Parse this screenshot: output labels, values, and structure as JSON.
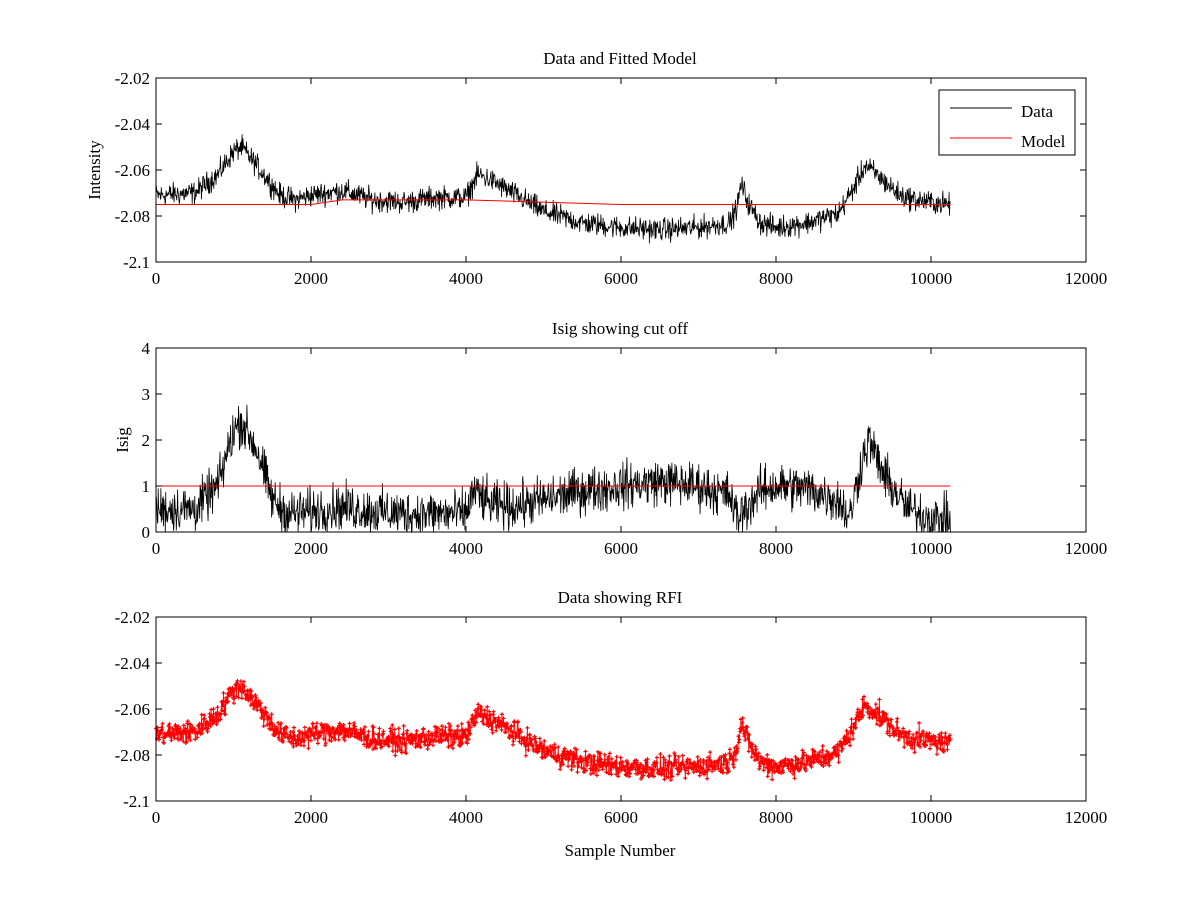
{
  "figure": {
    "background": "#ffffff"
  },
  "colors": {
    "data": "#000000",
    "model": "#ff0000",
    "rfi": "#ff0000",
    "axis": "#000000"
  },
  "chart_data": [
    {
      "type": "line",
      "title": "Data and Fitted Model",
      "xlabel": "",
      "ylabel": "Intensity",
      "xlim": [
        0,
        12000
      ],
      "ylim": [
        -2.1,
        -2.02
      ],
      "xticks": [
        0,
        2000,
        4000,
        6000,
        8000,
        10000,
        12000
      ],
      "xtick_labels": [
        "0",
        "2000",
        "4000",
        "6000",
        "8000",
        "10000",
        "12000"
      ],
      "yticks": [
        -2.1,
        -2.08,
        -2.06,
        -2.04,
        -2.02
      ],
      "ytick_labels": [
        "-2.1",
        "-2.08",
        "-2.06",
        "-2.04",
        "-2.02"
      ],
      "legend": {
        "placement": "top-right",
        "entries": [
          {
            "label": "Data",
            "color": "#000000"
          },
          {
            "label": "Model",
            "color": "#ff0000"
          }
        ]
      },
      "series": [
        {
          "name": "Data",
          "color": "#000000",
          "style": "noisy-line",
          "x": [
            0,
            500,
            800,
            1000,
            1100,
            1300,
            1600,
            1800,
            2000,
            2400,
            2800,
            3200,
            3600,
            4000,
            4150,
            4300,
            4600,
            5000,
            5500,
            6000,
            6500,
            7000,
            7400,
            7500,
            7550,
            7650,
            7800,
            8000,
            8400,
            8800,
            9000,
            9150,
            9300,
            9600,
            9800,
            10000,
            10250
          ],
          "mean": [
            -2.071,
            -2.07,
            -2.062,
            -2.052,
            -2.05,
            -2.058,
            -2.071,
            -2.073,
            -2.071,
            -2.069,
            -2.073,
            -2.074,
            -2.072,
            -2.072,
            -2.062,
            -2.064,
            -2.07,
            -2.078,
            -2.083,
            -2.085,
            -2.086,
            -2.085,
            -2.083,
            -2.076,
            -2.066,
            -2.075,
            -2.083,
            -2.085,
            -2.083,
            -2.079,
            -2.068,
            -2.058,
            -2.062,
            -2.071,
            -2.073,
            -2.074,
            -2.075
          ],
          "noise": 0.0045
        },
        {
          "name": "Model",
          "color": "#ff0000",
          "style": "line",
          "x": [
            0,
            2000,
            2400,
            4000,
            6000,
            7500,
            7800,
            9000,
            10250
          ],
          "values": [
            -2.075,
            -2.075,
            -2.073,
            -2.073,
            -2.075,
            -2.075,
            -2.075,
            -2.075,
            -2.075
          ]
        }
      ]
    },
    {
      "type": "line",
      "title": "Isig showing cut off",
      "xlabel": "",
      "ylabel": "Isig",
      "xlim": [
        0,
        12000
      ],
      "ylim": [
        0,
        4
      ],
      "xticks": [
        0,
        2000,
        4000,
        6000,
        8000,
        10000,
        12000
      ],
      "xtick_labels": [
        "0",
        "2000",
        "4000",
        "6000",
        "8000",
        "10000",
        "12000"
      ],
      "yticks": [
        0,
        1,
        2,
        3,
        4
      ],
      "ytick_labels": [
        "0",
        "1",
        "2",
        "3",
        "4"
      ],
      "series": [
        {
          "color": "#000000",
          "style": "noisy-line",
          "x": [
            0,
            500,
            800,
            1000,
            1100,
            1300,
            1500,
            1700,
            2000,
            2400,
            2800,
            3200,
            3600,
            4000,
            4100,
            4300,
            4600,
            5000,
            5500,
            6000,
            6500,
            7000,
            7400,
            7500,
            7600,
            7800,
            8000,
            8400,
            8800,
            8950,
            9100,
            9200,
            9400,
            9700,
            10000,
            10250
          ],
          "mean": [
            0.5,
            0.5,
            1.0,
            2.2,
            2.4,
            1.8,
            0.7,
            0.4,
            0.45,
            0.55,
            0.45,
            0.4,
            0.4,
            0.4,
            0.9,
            0.6,
            0.55,
            0.7,
            0.9,
            1.0,
            1.1,
            1.0,
            0.8,
            0.3,
            0.5,
            0.9,
            1.0,
            0.95,
            0.7,
            0.3,
            1.5,
            2.0,
            1.2,
            0.5,
            0.3,
            0.25
          ],
          "noise": 0.45
        },
        {
          "color": "#ff0000",
          "style": "line",
          "x": [
            0,
            10250
          ],
          "values": [
            1,
            1
          ]
        }
      ]
    },
    {
      "type": "scatter",
      "title": "Data showing RFI",
      "xlabel": "Sample Number",
      "ylabel": "",
      "xlim": [
        0,
        12000
      ],
      "ylim": [
        -2.1,
        -2.02
      ],
      "xticks": [
        0,
        2000,
        4000,
        6000,
        8000,
        10000,
        12000
      ],
      "xtick_labels": [
        "0",
        "2000",
        "4000",
        "6000",
        "8000",
        "10000",
        "12000"
      ],
      "yticks": [
        -2.1,
        -2.08,
        -2.06,
        -2.04,
        -2.02
      ],
      "ytick_labels": [
        "-2.1",
        "-2.08",
        "-2.06",
        "-2.04",
        "-2.02"
      ],
      "series": [
        {
          "color": "#ff0000",
          "style": "noisy-markers",
          "x": [
            0,
            500,
            800,
            1000,
            1100,
            1300,
            1600,
            1800,
            2000,
            2400,
            2800,
            3200,
            3600,
            4000,
            4150,
            4300,
            4600,
            5000,
            5500,
            6000,
            6500,
            7000,
            7400,
            7500,
            7550,
            7650,
            7800,
            8000,
            8400,
            8800,
            9000,
            9150,
            9300,
            9600,
            9800,
            10000,
            10250
          ],
          "mean": [
            -2.071,
            -2.07,
            -2.062,
            -2.052,
            -2.05,
            -2.058,
            -2.071,
            -2.073,
            -2.071,
            -2.069,
            -2.073,
            -2.074,
            -2.072,
            -2.072,
            -2.062,
            -2.064,
            -2.07,
            -2.078,
            -2.083,
            -2.085,
            -2.086,
            -2.085,
            -2.083,
            -2.076,
            -2.066,
            -2.075,
            -2.083,
            -2.085,
            -2.083,
            -2.079,
            -2.068,
            -2.058,
            -2.062,
            -2.071,
            -2.073,
            -2.074,
            -2.075
          ],
          "noise": 0.0045
        }
      ]
    }
  ]
}
